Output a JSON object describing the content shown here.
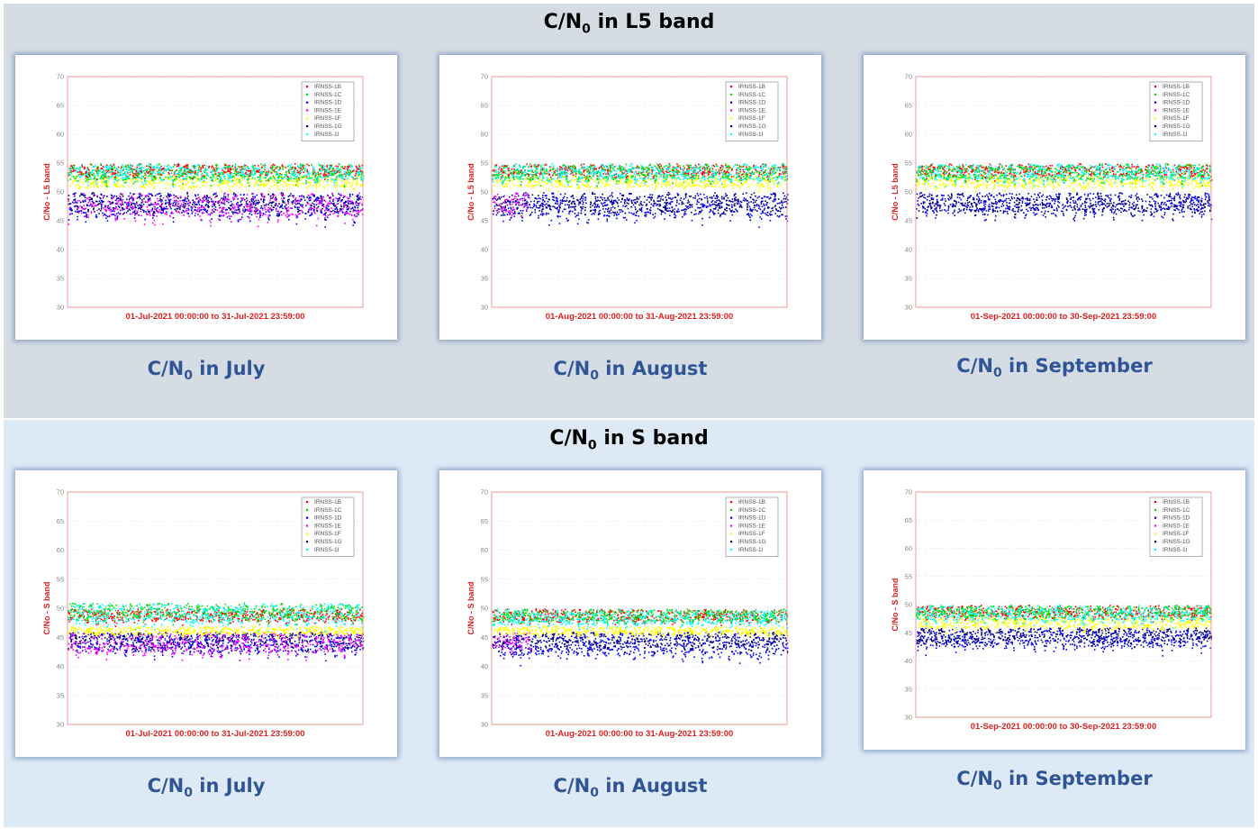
{
  "sections": [
    {
      "title_prefix": "C/N",
      "title_sub": "0",
      "title_suffix": " in L5 band",
      "charts": [
        {
          "caption_prefix": "C/N",
          "caption_sub": "0",
          "caption_suffix": " in July"
        },
        {
          "caption_prefix": "C/N",
          "caption_sub": "0",
          "caption_suffix": " in August"
        },
        {
          "caption_prefix": "C/N",
          "caption_sub": "0",
          "caption_suffix": " in September"
        }
      ]
    },
    {
      "title_prefix": "C/N",
      "title_sub": "0",
      "title_suffix": " in S band",
      "charts": [
        {
          "caption_prefix": "C/N",
          "caption_sub": "0",
          "caption_suffix": " in July"
        },
        {
          "caption_prefix": "C/N",
          "caption_sub": "0",
          "caption_suffix": " in August"
        },
        {
          "caption_prefix": "C/N",
          "caption_sub": "0",
          "caption_suffix": " in September"
        }
      ]
    }
  ],
  "chart_data": [
    {
      "type": "scatter",
      "band": "L5",
      "ylabel": "C/No - L5 band",
      "xlabel": "01-Jul-2021 00:00:00   to   31-Jul-2021 23:59:00",
      "ylim": [
        30,
        70
      ],
      "yticks": [
        30,
        35,
        40,
        45,
        50,
        55,
        60,
        65,
        70
      ],
      "grid": true,
      "legend_position": "top-right",
      "series": [
        {
          "name": "IRNSS-1B",
          "color": "#ff0000",
          "low": 52,
          "high": 55
        },
        {
          "name": "IRNSS-1C",
          "color": "#00e000",
          "low": 51,
          "high": 55
        },
        {
          "name": "IRNSS-1D",
          "color": "#0000ff",
          "low": 44,
          "high": 50
        },
        {
          "name": "IRNSS-1E",
          "color": "#ff00ff",
          "low": 44,
          "high": 50
        },
        {
          "name": "IRNSS-1F",
          "color": "#ffff00",
          "low": 50,
          "high": 53
        },
        {
          "name": "IRNSS-1G",
          "color": "#000080",
          "low": 45,
          "high": 50
        },
        {
          "name": "IRNSS-1I",
          "color": "#00ffff",
          "low": 51,
          "high": 55
        }
      ]
    },
    {
      "type": "scatter",
      "band": "L5",
      "ylabel": "C/No - L5 band",
      "xlabel": "01-Aug-2021 00:00:00   to   31-Aug-2021 23:59:00",
      "ylim": [
        30,
        70
      ],
      "yticks": [
        30,
        35,
        40,
        45,
        50,
        55,
        60,
        65,
        70
      ],
      "grid": true,
      "legend_position": "top-right",
      "series": [
        {
          "name": "IRNSS-1B",
          "color": "#ff0000",
          "low": 52,
          "high": 55
        },
        {
          "name": "IRNSS-1C",
          "color": "#00e000",
          "low": 51,
          "high": 55
        },
        {
          "name": "IRNSS-1D",
          "color": "#0000ff",
          "low": 44,
          "high": 50
        },
        {
          "name": "IRNSS-1E",
          "color": "#ff00ff",
          "low": 45,
          "high": 50,
          "until_day": 4
        },
        {
          "name": "IRNSS-1F",
          "color": "#ffff00",
          "low": 50,
          "high": 53
        },
        {
          "name": "IRNSS-1G",
          "color": "#000080",
          "low": 45,
          "high": 50
        },
        {
          "name": "IRNSS-1I",
          "color": "#00ffff",
          "low": 51,
          "high": 55
        }
      ]
    },
    {
      "type": "scatter",
      "band": "L5",
      "ylabel": "C/No - L5 band",
      "xlabel": "01-Sep-2021 00:00:00   to   30-Sep-2021 23:59:00",
      "ylim": [
        30,
        70
      ],
      "yticks": [
        30,
        35,
        40,
        45,
        50,
        55,
        60,
        65,
        70
      ],
      "grid": true,
      "legend_position": "top-right",
      "series": [
        {
          "name": "IRNSS-1B",
          "color": "#ff0000",
          "low": 52,
          "high": 55
        },
        {
          "name": "IRNSS-1C",
          "color": "#00e000",
          "low": 51,
          "high": 55
        },
        {
          "name": "IRNSS-1D",
          "color": "#0000ff",
          "low": 45,
          "high": 50
        },
        {
          "name": "IRNSS-1E",
          "color": "#ff00ff",
          "low": 50,
          "high": 50
        },
        {
          "name": "IRNSS-1F",
          "color": "#ffff00",
          "low": 50,
          "high": 53
        },
        {
          "name": "IRNSS-1G",
          "color": "#000080",
          "low": 45,
          "high": 50
        },
        {
          "name": "IRNSS-1I",
          "color": "#00ffff",
          "low": 51,
          "high": 55
        }
      ]
    },
    {
      "type": "scatter",
      "band": "S",
      "ylabel": "C/No - S band",
      "xlabel": "01-Jul-2021 00:00:00   to   31-Jul-2021 23:59:00",
      "ylim": [
        30,
        70
      ],
      "yticks": [
        30,
        35,
        40,
        45,
        50,
        55,
        60,
        65,
        70
      ],
      "grid": true,
      "legend_position": "top-right",
      "series": [
        {
          "name": "IRNSS-1B",
          "color": "#ff0000",
          "low": 47,
          "high": 50
        },
        {
          "name": "IRNSS-1C",
          "color": "#00e000",
          "low": 47,
          "high": 51
        },
        {
          "name": "IRNSS-1D",
          "color": "#0000ff",
          "low": 41,
          "high": 46
        },
        {
          "name": "IRNSS-1E",
          "color": "#ff00ff",
          "low": 41,
          "high": 46
        },
        {
          "name": "IRNSS-1F",
          "color": "#ffff00",
          "low": 45,
          "high": 47
        },
        {
          "name": "IRNSS-1G",
          "color": "#000080",
          "low": 42,
          "high": 46
        },
        {
          "name": "IRNSS-1I",
          "color": "#00ffff",
          "low": 46,
          "high": 51
        }
      ]
    },
    {
      "type": "scatter",
      "band": "S",
      "ylabel": "C/No - S band",
      "xlabel": "01-Aug-2021 00:00:00   to   31-Aug-2021 23:59:00",
      "ylim": [
        30,
        70
      ],
      "yticks": [
        30,
        35,
        40,
        45,
        50,
        55,
        60,
        65,
        70
      ],
      "grid": true,
      "legend_position": "top-right",
      "series": [
        {
          "name": "IRNSS-1B",
          "color": "#ff0000",
          "low": 47,
          "high": 50
        },
        {
          "name": "IRNSS-1C",
          "color": "#00e000",
          "low": 47,
          "high": 50
        },
        {
          "name": "IRNSS-1D",
          "color": "#0000ff",
          "low": 40,
          "high": 46
        },
        {
          "name": "IRNSS-1E",
          "color": "#ff00ff",
          "low": 42,
          "high": 46,
          "until_day": 4
        },
        {
          "name": "IRNSS-1F",
          "color": "#ffff00",
          "low": 45,
          "high": 47
        },
        {
          "name": "IRNSS-1G",
          "color": "#000080",
          "low": 42,
          "high": 46
        },
        {
          "name": "IRNSS-1I",
          "color": "#00ffff",
          "low": 46,
          "high": 50
        }
      ]
    },
    {
      "type": "scatter",
      "band": "S",
      "ylabel": "C/No - S band",
      "xlabel": "01-Sep-2021 00:00:00   to   30-Sep-2021 23:59:00",
      "ylim": [
        30,
        70
      ],
      "yticks": [
        30,
        35,
        40,
        45,
        50,
        55,
        60,
        65,
        70
      ],
      "grid": true,
      "legend_position": "top-right",
      "series": [
        {
          "name": "IRNSS-1B",
          "color": "#ff0000",
          "low": 47,
          "high": 50
        },
        {
          "name": "IRNSS-1C",
          "color": "#00e000",
          "low": 47,
          "high": 50
        },
        {
          "name": "IRNSS-1D",
          "color": "#0000ff",
          "low": 41,
          "high": 46
        },
        {
          "name": "IRNSS-1E",
          "color": "#ff00ff",
          "low": 46,
          "high": 46
        },
        {
          "name": "IRNSS-1F",
          "color": "#ffff00",
          "low": 45,
          "high": 48
        },
        {
          "name": "IRNSS-1G",
          "color": "#000080",
          "low": 42,
          "high": 46
        },
        {
          "name": "IRNSS-1I",
          "color": "#00ffff",
          "low": 46,
          "high": 50
        }
      ]
    }
  ]
}
